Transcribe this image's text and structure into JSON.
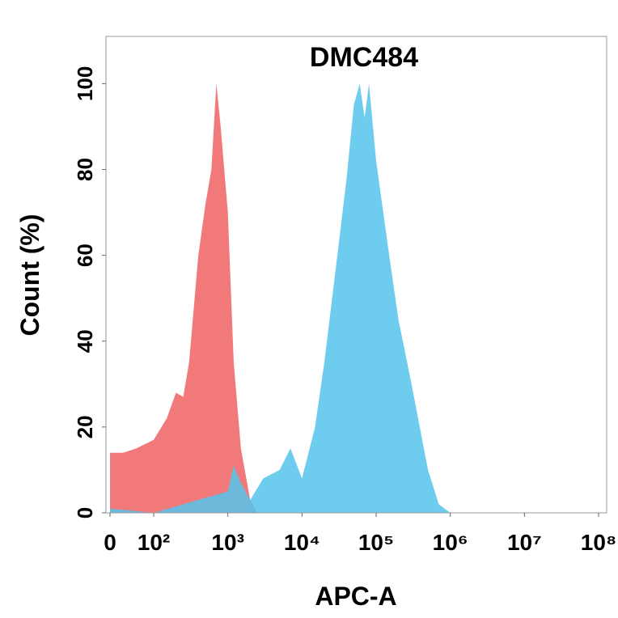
{
  "chart_data": {
    "type": "area",
    "title": "DMC484",
    "x_label": "APC-A",
    "y_label": "Count  (%)",
    "xscale": "biexponential",
    "xlim": [
      0,
      100000000
    ],
    "xticks": [
      0,
      {
        "value": 100,
        "label": "10²"
      },
      {
        "value": 1000,
        "label": "10³"
      },
      {
        "value": 10000,
        "label": "10⁴"
      },
      {
        "value": 100000,
        "label": "10⁵"
      },
      {
        "value": 1000000,
        "label": "10⁶"
      },
      {
        "value": 10000000,
        "label": "10⁷"
      },
      {
        "value": 100000000,
        "label": "10⁸"
      }
    ],
    "ylim": [
      0,
      111
    ],
    "yticks": [
      0,
      20,
      40,
      60,
      80,
      100
    ],
    "series": [
      {
        "color": "#f06262",
        "x": [
          0,
          30,
          60,
          100,
          150,
          200,
          250,
          300,
          400,
          500,
          600,
          700,
          800,
          1000,
          1200,
          1500,
          2000,
          2500
        ],
        "values": [
          14,
          14,
          15,
          17,
          22,
          28,
          27,
          35,
          60,
          72,
          80,
          100,
          90,
          70,
          35,
          15,
          3,
          0
        ]
      },
      {
        "color": "#55c4ec",
        "x": [
          0,
          100,
          1000,
          1200,
          1500,
          2000,
          3000,
          5000,
          7000,
          10000,
          15000,
          20000,
          30000,
          40000,
          50000,
          60000,
          70000,
          80000,
          100000,
          150000,
          200000,
          300000,
          500000,
          700000,
          1000000
        ],
        "values": [
          1,
          0,
          5,
          11,
          7,
          3,
          8,
          10,
          15,
          8,
          20,
          35,
          60,
          78,
          95,
          100,
          92,
          100,
          82,
          60,
          45,
          30,
          10,
          2,
          0
        ]
      }
    ]
  }
}
